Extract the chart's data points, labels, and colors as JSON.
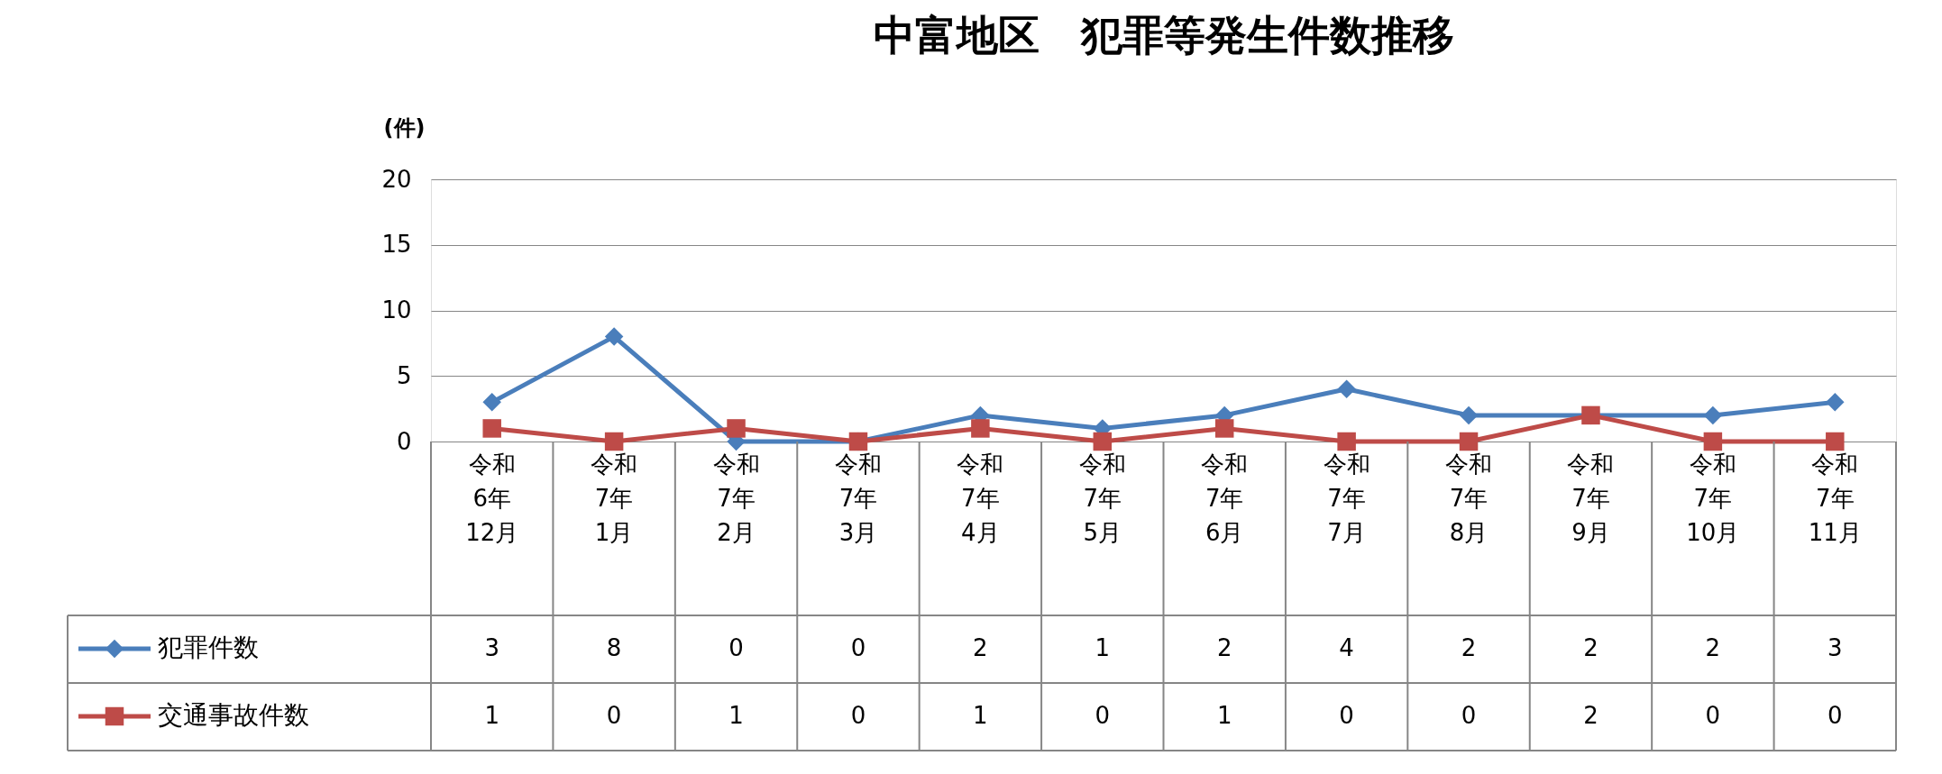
{
  "chart_data": {
    "type": "line",
    "title": "中富地区　犯罪等発生件数推移",
    "ylabel": "(件)",
    "categories": [
      "令和\n6年\n12月",
      "令和\n7年\n1月",
      "令和\n7年\n2月",
      "令和\n7年\n3月",
      "令和\n7年\n4月",
      "令和\n7年\n5月",
      "令和\n7年\n6月",
      "令和\n7年\n7月",
      "令和\n7年\n8月",
      "令和\n7年\n9月",
      "令和\n7年\n10月",
      "令和\n7年\n11月"
    ],
    "series": [
      {
        "name": "犯罪件数",
        "color": "#4a7ebb",
        "marker": "diamond",
        "values": [
          3,
          8,
          0,
          0,
          2,
          1,
          2,
          4,
          2,
          2,
          2,
          3
        ]
      },
      {
        "name": "交通事故件数",
        "color": "#be4b48",
        "marker": "square",
        "values": [
          1,
          0,
          1,
          0,
          1,
          0,
          1,
          0,
          0,
          2,
          0,
          0
        ]
      }
    ],
    "ylim": [
      0,
      20
    ],
    "yticks": [
      0,
      5,
      10,
      15,
      20
    ],
    "grid": "y",
    "legend": "bottom",
    "data_labels": true,
    "line_style": "solid"
  }
}
